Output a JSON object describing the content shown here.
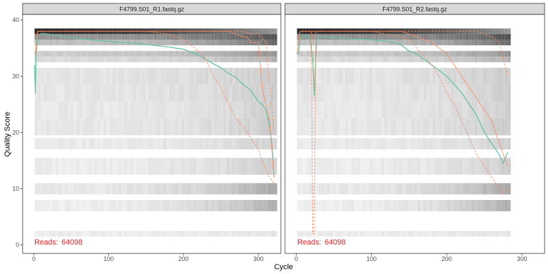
{
  "chart_data": {
    "type": "line",
    "xlabel": "Cycle",
    "ylabel": "Quality Score",
    "xlim": [
      -15,
      330
    ],
    "ylim": [
      -1.5,
      41
    ],
    "x_ticks": [
      0,
      100,
      200,
      300
    ],
    "y_ticks": [
      0,
      10,
      20,
      30,
      40
    ],
    "grid": false,
    "colors": {
      "mean": "#66c2a5",
      "quantile": "#fc8d62",
      "reads": "#e41a1c",
      "strip_fill": "#d9d9d9",
      "panel_border": "#333333"
    },
    "panels": [
      {
        "title": "F4799.S01_R1.fastq.gz",
        "reads_label": "Reads:",
        "reads_value": "64098",
        "max_cycle": 321,
        "series": [
          {
            "role": "mean",
            "x": [
              1,
              2,
              3,
              5,
              8,
              12,
              20,
              40,
              60,
              80,
              100,
              120,
              140,
              160,
              180,
              200,
              210,
              220,
              230,
              240,
              250,
              260,
              270,
              280,
              290,
              295,
              300,
              305,
              310,
              315,
              318,
              321
            ],
            "values": [
              32,
              27,
              34,
              37,
              37.5,
              37.6,
              37.5,
              37,
              36.7,
              36.4,
              36.2,
              36,
              35.8,
              35.5,
              35.2,
              34.8,
              34.3,
              33.8,
              33,
              32.2,
              31.5,
              30.5,
              29.8,
              28.5,
              27.5,
              26.5,
              25.5,
              25,
              24,
              21,
              18,
              12
            ]
          },
          {
            "role": "median",
            "x": [
              1,
              2,
              5,
              10,
              40,
              100,
              150,
              200,
              230,
              260,
              270,
              280,
              285,
              290,
              295,
              300,
              305,
              310,
              315,
              321
            ],
            "values": [
              34,
              34,
              38,
              38,
              38,
              38,
              38,
              38,
              38,
              38,
              37.5,
              37,
              37,
              36,
              36,
              36,
              28,
              25,
              22,
              12
            ]
          },
          {
            "role": "q25",
            "x": [
              1,
              2,
              5,
              10,
              40,
              100,
              150,
              180,
              190,
              200,
              210,
              220,
              230,
              240,
              250,
              260,
              270,
              280,
              290,
              300,
              305,
              310,
              315,
              321
            ],
            "values": [
              33,
              33,
              38,
              38,
              38,
              38,
              38,
              37.5,
              37,
              36.5,
              35.5,
              34.5,
              33,
              30,
              28,
              25,
              22.5,
              21,
              19,
              17,
              15,
              13.5,
              12,
              11
            ]
          },
          {
            "role": "q75",
            "x": [
              1,
              2,
              5,
              10,
              100,
              200,
              250,
              280,
              290,
              300,
              310,
              321
            ],
            "values": [
              34,
              34,
              38,
              38,
              38,
              38,
              38,
              38,
              37.5,
              37.5,
              36,
              20
            ]
          }
        ]
      },
      {
        "title": "F4799.S01_R2.fastq.gz",
        "reads_label": "Reads:",
        "reads_value": "64098",
        "max_cycle": 281,
        "series": [
          {
            "role": "mean",
            "x": [
              1,
              3,
              5,
              8,
              12,
              18,
              22,
              24,
              27,
              30,
              40,
              60,
              80,
              100,
              120,
              130,
              140,
              150,
              160,
              170,
              180,
              190,
              200,
              210,
              220,
              230,
              240,
              250,
              260,
              270,
              275,
              281
            ],
            "values": [
              34,
              34,
              36.5,
              37,
              37.2,
              37,
              33,
              26.5,
              36.5,
              37,
              37,
              36.8,
              36.6,
              36.5,
              36.2,
              36,
              35.5,
              34.5,
              34,
              33,
              32,
              31,
              30,
              28.5,
              27,
              25,
              23,
              20,
              18,
              16,
              14.5,
              16.5
            ]
          },
          {
            "role": "median",
            "x": [
              1,
              5,
              22,
              24,
              27,
              100,
              140,
              160,
              180,
              200,
              220,
              240,
              260,
              270,
              281
            ],
            "values": [
              34,
              38,
              38,
              38,
              38,
              38,
              38,
              37,
              36,
              34,
              30,
              26,
              22,
              18,
              14
            ]
          },
          {
            "role": "q25",
            "x": [
              1,
              5,
              20,
              22,
              23,
              24,
              26,
              100,
              140,
              150,
              160,
              170,
              180,
              190,
              200,
              210,
              220,
              230,
              240,
              250,
              260,
              270,
              275,
              281
            ],
            "values": [
              34,
              38,
              38,
              2,
              2,
              2,
              38,
              38,
              37,
              36.5,
              35,
              33.5,
              32,
              30,
              27,
              25,
              22,
              19,
              16,
              14,
              12,
              10,
              9,
              10
            ]
          },
          {
            "role": "q75",
            "x": [
              1,
              5,
              100,
              200,
              240,
              260,
              270,
              281
            ],
            "values": [
              34,
              38,
              38,
              38,
              38,
              37,
              36,
              30
            ]
          }
        ]
      }
    ]
  }
}
